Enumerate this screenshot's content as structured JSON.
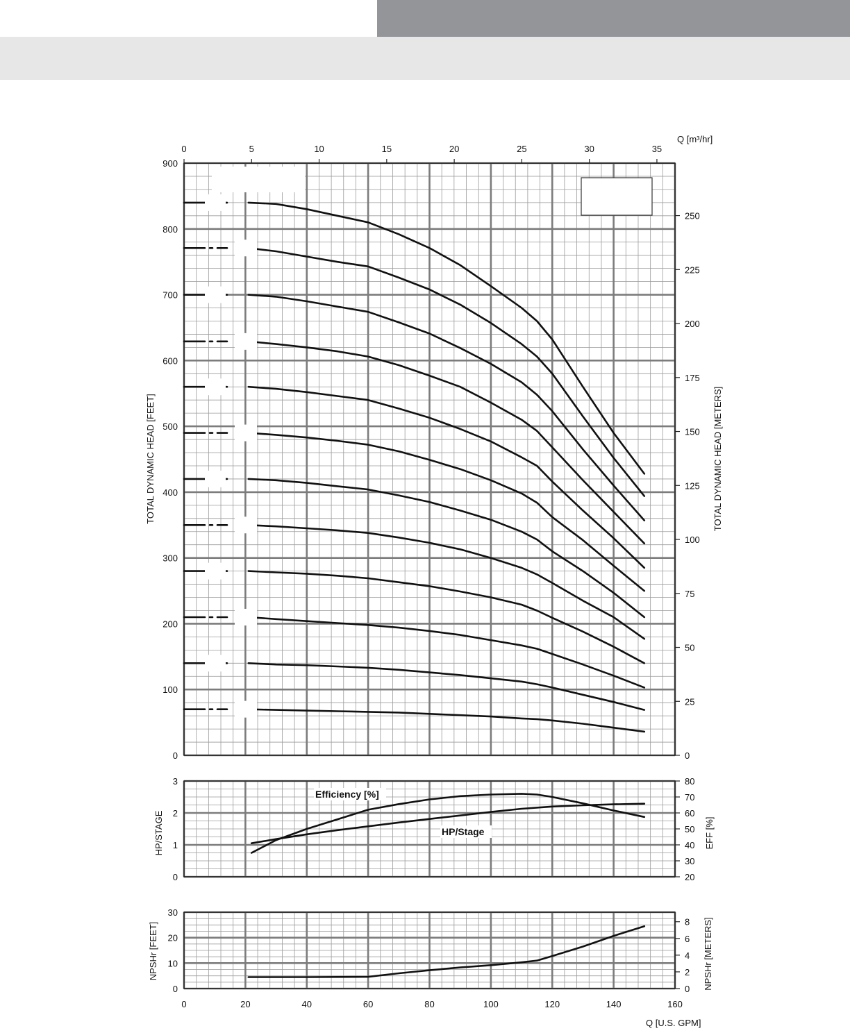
{
  "chart_data": [
    {
      "type": "line",
      "title": "",
      "xlabel": "Q [U.S. GPM]",
      "x2label": "Q [m³/hr]",
      "ylabel": "TOTAL DYNAMIC HEAD [FEET]",
      "y2label": "TOTAL DYNAMIC HEAD [METERS]",
      "xlim": [
        0,
        160
      ],
      "ylim": [
        0,
        900
      ],
      "y2lim": [
        0,
        274.3
      ],
      "x_ticks": [
        0,
        20,
        40,
        60,
        80,
        100,
        120,
        140,
        160
      ],
      "x2_ticks": [
        "0",
        "5",
        "10",
        "15",
        "20",
        "25",
        "30",
        "35"
      ],
      "y_ticks": [
        "0",
        "100",
        "200",
        "300",
        "400",
        "500",
        "600",
        "700",
        "800",
        "900"
      ],
      "y2_ticks": [
        "0",
        "25",
        "50",
        "75",
        "100",
        "125",
        "150",
        "175",
        "200",
        "225",
        "250"
      ],
      "grid": true,
      "shutoff_heads": [
        840,
        771,
        700,
        629,
        560,
        490,
        420,
        350,
        280,
        210,
        140,
        70
      ],
      "x": [
        21,
        30,
        40,
        50,
        60,
        70,
        80,
        90,
        100,
        110,
        115,
        120,
        130,
        140,
        150
      ],
      "series": [
        {
          "values": [
            840,
            838,
            830,
            820,
            810,
            792,
            771,
            745,
            713,
            680,
            660,
            632,
            560,
            490,
            428
          ]
        },
        {
          "values": [
            771,
            766,
            758,
            750,
            743,
            726,
            708,
            685,
            657,
            625,
            606,
            580,
            515,
            452,
            394
          ]
        },
        {
          "values": [
            700,
            697,
            690,
            682,
            674,
            658,
            641,
            619,
            595,
            567,
            548,
            523,
            465,
            410,
            357
          ]
        },
        {
          "values": [
            629,
            625,
            620,
            614,
            606,
            593,
            577,
            560,
            536,
            510,
            493,
            468,
            418,
            370,
            322
          ]
        },
        {
          "values": [
            560,
            557,
            552,
            546,
            540,
            527,
            513,
            496,
            477,
            453,
            440,
            416,
            372,
            330,
            285
          ]
        },
        {
          "values": [
            490,
            487,
            483,
            478,
            472,
            462,
            449,
            435,
            418,
            398,
            384,
            362,
            327,
            288,
            250
          ]
        },
        {
          "values": [
            420,
            418,
            414,
            409,
            404,
            395,
            385,
            372,
            358,
            340,
            328,
            310,
            280,
            247,
            210
          ]
        },
        {
          "values": [
            350,
            348,
            345,
            342,
            338,
            331,
            323,
            313,
            300,
            285,
            275,
            262,
            235,
            210,
            177
          ]
        },
        {
          "values": [
            280,
            278,
            276,
            273,
            269,
            263,
            257,
            249,
            240,
            229,
            220,
            209,
            188,
            165,
            140
          ]
        },
        {
          "values": [
            210,
            207,
            204,
            201,
            198,
            194,
            189,
            183,
            175,
            167,
            162,
            154,
            138,
            121,
            103
          ]
        },
        {
          "values": [
            140,
            138,
            137,
            135,
            133,
            130,
            126,
            122,
            117,
            112,
            108,
            103,
            92,
            81,
            69
          ]
        },
        {
          "values": [
            70,
            69,
            68,
            67,
            66,
            65,
            63,
            61,
            59,
            56,
            55,
            53,
            48,
            42,
            36
          ]
        }
      ]
    },
    {
      "type": "line",
      "title": "",
      "ylabel": "HP/STAGE",
      "y2label": "EFF [%]",
      "xlim": [
        0,
        160
      ],
      "ylim": [
        0,
        3
      ],
      "y2lim": [
        20,
        80
      ],
      "y_ticks": [
        "0",
        "1",
        "2",
        "3"
      ],
      "y2_ticks": [
        "20",
        "30",
        "40",
        "50",
        "60",
        "70",
        "80"
      ],
      "grid": true,
      "series": [
        {
          "name": "Efficiency [%]",
          "axis": "right",
          "x": [
            22,
            30,
            40,
            50,
            60,
            70,
            80,
            90,
            100,
            110,
            115,
            120,
            130,
            140,
            150
          ],
          "values": [
            35,
            43,
            50,
            56,
            62,
            65.5,
            68.5,
            70.5,
            71.5,
            72,
            71.5,
            70,
            66,
            61.5,
            57.5
          ]
        },
        {
          "name": "HP/Stage",
          "axis": "left",
          "x": [
            22,
            30,
            40,
            50,
            60,
            70,
            80,
            90,
            100,
            110,
            120,
            130,
            140,
            150
          ],
          "values": [
            1.05,
            1.18,
            1.33,
            1.46,
            1.58,
            1.7,
            1.81,
            1.92,
            2.03,
            2.13,
            2.2,
            2.24,
            2.27,
            2.29
          ]
        }
      ]
    },
    {
      "type": "line",
      "title": "",
      "xlabel": "Q [U.S. GPM]",
      "ylabel": "NPSHr [FEET]",
      "y2label": "NPSHr [METERS]",
      "xlim": [
        0,
        160
      ],
      "ylim": [
        0,
        30
      ],
      "y2lim": [
        0,
        9.14
      ],
      "x_ticks": [
        "0",
        "20",
        "40",
        "60",
        "80",
        "100",
        "120",
        "140",
        "160"
      ],
      "y_ticks": [
        "0",
        "10",
        "20",
        "30"
      ],
      "y2_ticks": [
        "0",
        "2",
        "4",
        "6",
        "8"
      ],
      "grid": true,
      "series": [
        {
          "x": [
            21,
            40,
            60,
            70,
            80,
            90,
            100,
            110,
            115,
            120,
            130,
            140,
            150
          ],
          "values": [
            4.5,
            4.5,
            4.6,
            6,
            7.2,
            8.3,
            9.2,
            10.3,
            11,
            12.8,
            16.5,
            20.7,
            24.5
          ]
        }
      ]
    }
  ]
}
